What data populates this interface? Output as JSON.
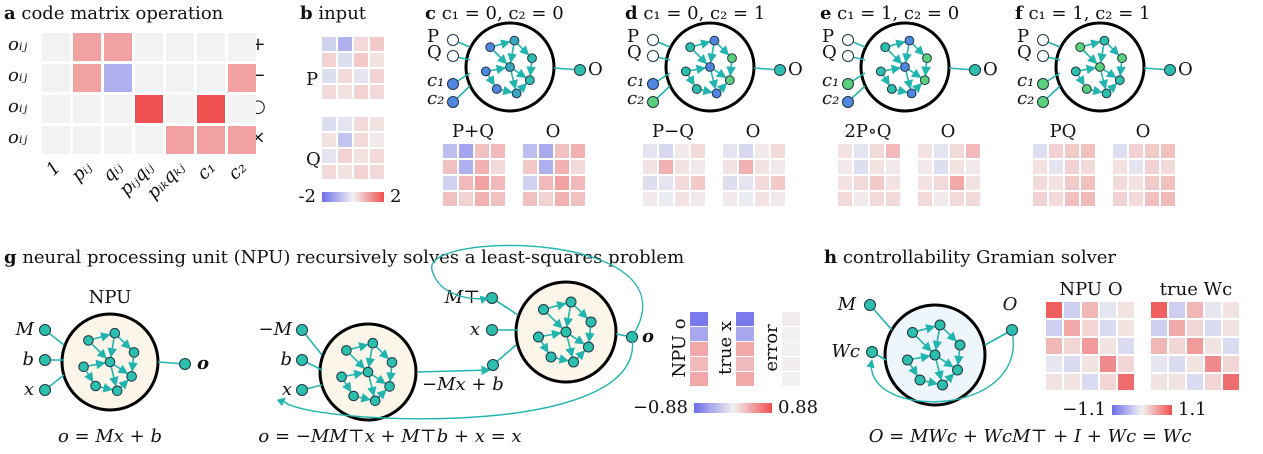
{
  "panel_a": {
    "letter": "a",
    "title": "code matrix operation",
    "row_labels": [
      "oᵢⱼ",
      "oᵢⱼ",
      "oᵢⱼ",
      "oᵢⱼ"
    ],
    "ops": [
      "+",
      "−",
      "○",
      "×"
    ],
    "col_labels": [
      "1",
      "pᵢⱼ",
      "qᵢⱼ",
      "pᵢⱼqᵢⱼ",
      "pᵢₖqₖⱼ",
      "c₁",
      "c₂"
    ],
    "matrix": [
      [
        0,
        1,
        1,
        0,
        0,
        0,
        0
      ],
      [
        0,
        1,
        -1,
        0,
        0,
        0,
        1
      ],
      [
        0,
        0,
        0,
        2,
        0,
        2,
        0
      ],
      [
        0,
        0,
        0,
        0,
        1,
        1,
        1
      ]
    ]
  },
  "panel_b": {
    "letter": "b",
    "title": "input",
    "labels": [
      "P",
      "Q"
    ],
    "matrices": [
      [
        [
          -0.5,
          -1,
          0.3,
          0.5
        ],
        [
          0.4,
          -0.3,
          0.5,
          0.2
        ],
        [
          -0.3,
          0.3,
          -0.2,
          0.4
        ],
        [
          0.3,
          0.2,
          0.4,
          0.3
        ]
      ],
      [
        [
          -0.3,
          -0.2,
          0.3,
          0.2
        ],
        [
          0.2,
          -0.7,
          0.3,
          0.1
        ],
        [
          -0.2,
          0.4,
          0.2,
          0.3
        ],
        [
          0.3,
          0.2,
          0.4,
          0.3
        ]
      ]
    ],
    "colorbar": [
      -2,
      2
    ]
  },
  "panels_cf": [
    {
      "letter": "c",
      "title": "c₁ = 0, c₂ = 0",
      "nodes": [
        "P",
        "Q",
        "c₁",
        "c₂",
        "O"
      ],
      "matrix_labels": [
        "P+Q",
        "O"
      ],
      "matrices": [
        [
          [
            -0.8,
            -1.2,
            0.6,
            0.7
          ],
          [
            0.6,
            -1,
            0.8,
            0.3
          ],
          [
            -0.5,
            0.7,
            1.0,
            0.7
          ],
          [
            0.6,
            0.4,
            0.8,
            0.6
          ]
        ],
        [
          [
            -0.8,
            -1.1,
            0.6,
            0.8
          ],
          [
            0.5,
            -1,
            0.8,
            0.3
          ],
          [
            -0.5,
            0.7,
            1.0,
            0.7
          ],
          [
            0.6,
            0.4,
            0.8,
            0.6
          ]
        ]
      ]
    },
    {
      "letter": "d",
      "title": "c₁ = 0, c₂ = 1",
      "nodes": [
        "P",
        "Q",
        "c₁",
        "c₂",
        "O"
      ],
      "matrix_labels": [
        "P−Q",
        "O"
      ],
      "matrices": [
        [
          [
            -0.2,
            -0.4,
            0.1,
            0.3
          ],
          [
            0.2,
            0.8,
            0.2,
            0.1
          ],
          [
            -0.3,
            -0.2,
            0.3,
            0.5
          ],
          [
            0.1,
            -0.1,
            0.2,
            0.1
          ]
        ],
        [
          [
            -0.2,
            -0.4,
            0.1,
            0.3
          ],
          [
            0.2,
            0.8,
            0.2,
            0.1
          ],
          [
            -0.3,
            -0.2,
            0.3,
            0.5
          ],
          [
            0.1,
            -0.1,
            0.2,
            0.1
          ]
        ]
      ]
    },
    {
      "letter": "e",
      "title": "c₁ = 1, c₂ = 0",
      "nodes": [
        "P",
        "Q",
        "c₁",
        "c₂",
        "O"
      ],
      "matrix_labels": [
        "2P∘Q",
        "O"
      ],
      "matrices": [
        [
          [
            0.2,
            -0.2,
            0.3,
            0.7
          ],
          [
            0.1,
            -0.3,
            0.2,
            0.1
          ],
          [
            0.2,
            0.3,
            0.5,
            0.2
          ],
          [
            0.3,
            0.1,
            0.3,
            0.3
          ]
        ],
        [
          [
            0.2,
            -0.2,
            0.3,
            0.7
          ],
          [
            0.1,
            -0.3,
            0.2,
            0.1
          ],
          [
            0.2,
            0.3,
            0.9,
            0.2
          ],
          [
            0.3,
            0.1,
            0.3,
            0.3
          ]
        ]
      ]
    },
    {
      "letter": "f",
      "title": "c₁ = 1, c₂ = 1",
      "nodes": [
        "P",
        "Q",
        "c₁",
        "c₂",
        "O"
      ],
      "matrix_labels": [
        "PQ",
        "O"
      ],
      "matrices": [
        [
          [
            -0.3,
            0.4,
            0.5,
            0.6
          ],
          [
            0.2,
            -0.2,
            0.4,
            0.3
          ],
          [
            0.3,
            0.2,
            0.5,
            0.6
          ],
          [
            0.4,
            0.3,
            0.6,
            0.7
          ]
        ],
        [
          [
            -0.3,
            0.4,
            0.5,
            0.6
          ],
          [
            0.2,
            -0.2,
            0.4,
            0.3
          ],
          [
            0.3,
            0.2,
            0.5,
            0.6
          ],
          [
            0.4,
            0.3,
            0.6,
            0.7
          ]
        ]
      ]
    }
  ],
  "panel_g": {
    "letter": "g",
    "title": "neural processing unit (NPU) recursively solves a least-squares problem",
    "npu_label": "NPU",
    "left_inputs": [
      "M",
      "b",
      "x"
    ],
    "left_output": "o",
    "left_equation": "o = Mx + b",
    "right_inputs": [
      "−M",
      "b",
      "x"
    ],
    "feedback_inputs": [
      "M⊤",
      "x"
    ],
    "mid_label": "−Mx + b",
    "right_output": "o",
    "right_equation": "o = −MM⊤x + M⊤b + x = x",
    "column_labels": [
      "NPU o",
      "true x",
      "error"
    ],
    "columns": [
      [
        -0.8,
        -0.5,
        0.4,
        0.3,
        0.4
      ],
      [
        -0.8,
        -0.5,
        0.4,
        0.3,
        0.4
      ],
      [
        0.02,
        0.01,
        -0.01,
        0.02,
        0.01
      ]
    ],
    "colorbar": [
      {
        "value": -0.88,
        "label": "−0.88"
      },
      0.88
    ]
  },
  "panel_h": {
    "letter": "h",
    "title": "controllability Gramian solver",
    "inputs": [
      "M",
      "Wc"
    ],
    "output": "O",
    "matrix_labels": [
      "NPU O",
      "true Wc"
    ],
    "matrices": [
      [
        [
          1.0,
          -0.3,
          0.4,
          -0.1,
          0.1
        ],
        [
          -0.3,
          0.5,
          0.2,
          -0.2,
          0.1
        ],
        [
          0.4,
          0.2,
          0.6,
          0.1,
          -0.2
        ],
        [
          -0.1,
          -0.2,
          0.1,
          0.7,
          0.2
        ],
        [
          0.1,
          0.1,
          -0.2,
          0.2,
          0.9
        ]
      ],
      [
        [
          1.0,
          -0.3,
          0.4,
          -0.1,
          0.1
        ],
        [
          -0.3,
          0.5,
          0.2,
          -0.2,
          0.1
        ],
        [
          0.4,
          0.2,
          0.6,
          0.1,
          -0.2
        ],
        [
          -0.1,
          -0.2,
          0.1,
          0.7,
          0.2
        ],
        [
          0.1,
          0.1,
          -0.2,
          0.2,
          0.9
        ]
      ]
    ],
    "colorbar": [
      {
        "value": -1.1,
        "label": "−1.1"
      },
      1.1
    ],
    "equation": "O = MWc + WcM⊤ + I + Wc = Wc"
  }
}
